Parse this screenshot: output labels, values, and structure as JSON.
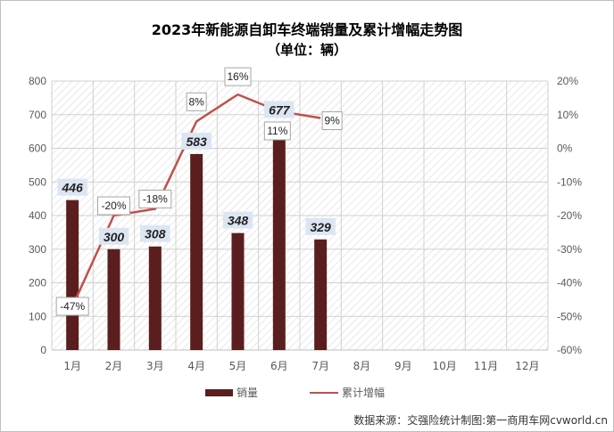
{
  "chart_data": {
    "type": "bar",
    "title": "2023年新能源自卸车终端销量及累计增幅走势图",
    "subtitle": "（单位：辆）",
    "categories": [
      "1月",
      "2月",
      "3月",
      "4月",
      "5月",
      "6月",
      "7月",
      "8月",
      "9月",
      "10月",
      "11月",
      "12月"
    ],
    "series": [
      {
        "name": "销量",
        "type": "bar",
        "axis": "left",
        "color": "#5b1e1e",
        "values": [
          446,
          300,
          308,
          583,
          348,
          677,
          329,
          null,
          null,
          null,
          null,
          null
        ]
      },
      {
        "name": "累计增幅",
        "type": "line",
        "axis": "right",
        "color": "#c0504d",
        "values": [
          -47,
          -20,
          -18,
          8,
          16,
          11,
          9,
          null,
          null,
          null,
          null,
          null
        ]
      }
    ],
    "ylim": [
      0,
      800
    ],
    "yticks": [
      0,
      100,
      200,
      300,
      400,
      500,
      600,
      700,
      800
    ],
    "y2lim": [
      -60,
      20
    ],
    "y2ticks": [
      "-60%",
      "-50%",
      "-40%",
      "-30%",
      "-20%",
      "-10%",
      "0%",
      "10%",
      "20%"
    ],
    "bar_labels": [
      "446",
      "300",
      "308",
      "583",
      "348",
      "677",
      "329"
    ],
    "line_labels": [
      "-47%",
      "-20%",
      "-18%",
      "8%",
      "16%",
      "11%",
      "9%"
    ],
    "grid": true,
    "legend_position": "bottom"
  },
  "footer": {
    "source": "数据来源：交强险统计制图:第一商用车网cvworld.cn"
  }
}
